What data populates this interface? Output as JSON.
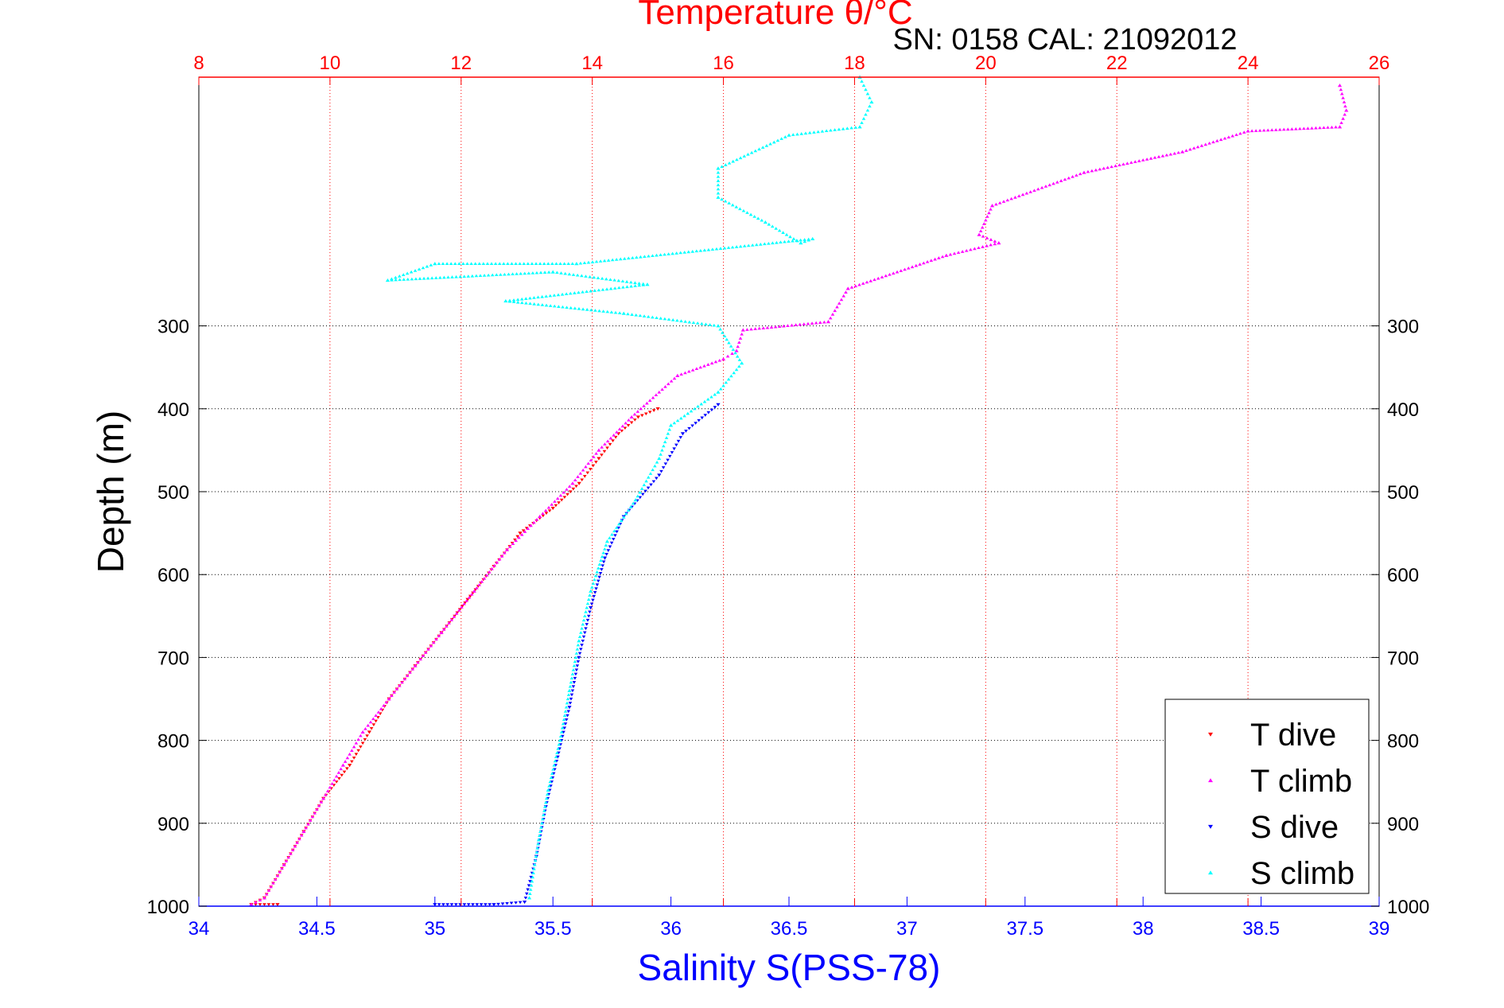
{
  "chart_data": {
    "type": "scatter",
    "title": "Temperature θ/°C",
    "subtitle": "SN: 0158  CAL: 21092012",
    "xlabel": "Salinity S(PSS-78)",
    "ylabel": "Depth (m)",
    "x_bottom": {
      "label": "Salinity S(PSS-78)",
      "min": 34,
      "max": 39,
      "ticks": [
        "34",
        "34.5",
        "35",
        "35.5",
        "36",
        "36.5",
        "37",
        "37.5",
        "38",
        "38.5",
        "39"
      ],
      "color": "#0000ff"
    },
    "x_top": {
      "label": "Temperature θ/°C",
      "min": 8,
      "max": 26,
      "ticks": [
        "8",
        "10",
        "12",
        "14",
        "16",
        "18",
        "20",
        "22",
        "24",
        "26"
      ],
      "color": "#ff0000"
    },
    "y": {
      "min": 0,
      "max": 1000,
      "reversed": true,
      "ticks": [
        "300",
        "400",
        "500",
        "600",
        "700",
        "800",
        "900",
        "1000"
      ],
      "tick_values": [
        300,
        400,
        500,
        600,
        700,
        800,
        900,
        1000
      ]
    },
    "grid": true,
    "legend_position": "bottom-right",
    "series": [
      {
        "name": "T dive",
        "axis": "temperature",
        "marker": "triangle-down",
        "color": "#ff0000",
        "points": [
          [
            15.0,
            400
          ],
          [
            14.7,
            410
          ],
          [
            14.4,
            430
          ],
          [
            14.1,
            460
          ],
          [
            13.8,
            490
          ],
          [
            13.4,
            520
          ],
          [
            12.9,
            550
          ],
          [
            12.5,
            590
          ],
          [
            12.1,
            630
          ],
          [
            11.7,
            670
          ],
          [
            11.3,
            710
          ],
          [
            10.9,
            750
          ],
          [
            10.6,
            790
          ],
          [
            10.3,
            830
          ],
          [
            9.9,
            870
          ],
          [
            9.6,
            910
          ],
          [
            9.3,
            950
          ],
          [
            9.0,
            990
          ],
          [
            8.8,
            998
          ],
          [
            9.2,
            998
          ]
        ]
      },
      {
        "name": "T climb",
        "axis": "temperature",
        "marker": "triangle-up",
        "color": "#ff00ff",
        "points": [
          [
            25.4,
            10
          ],
          [
            25.5,
            40
          ],
          [
            25.4,
            60
          ],
          [
            24.0,
            65
          ],
          [
            23.0,
            90
          ],
          [
            21.5,
            115
          ],
          [
            20.1,
            155
          ],
          [
            19.9,
            190
          ],
          [
            20.2,
            200
          ],
          [
            19.4,
            215
          ],
          [
            17.9,
            255
          ],
          [
            17.6,
            295
          ],
          [
            16.3,
            305
          ],
          [
            16.2,
            330
          ],
          [
            16.0,
            340
          ],
          [
            15.3,
            360
          ],
          [
            14.6,
            410
          ],
          [
            14.1,
            450
          ],
          [
            13.7,
            490
          ],
          [
            13.2,
            530
          ],
          [
            12.7,
            570
          ],
          [
            12.2,
            620
          ],
          [
            11.7,
            670
          ],
          [
            11.3,
            710
          ],
          [
            10.9,
            750
          ],
          [
            10.5,
            790
          ],
          [
            10.2,
            830
          ],
          [
            9.9,
            870
          ],
          [
            9.6,
            910
          ],
          [
            9.3,
            950
          ],
          [
            9.0,
            990
          ],
          [
            8.8,
            998
          ]
        ]
      },
      {
        "name": "S dive",
        "axis": "salinity",
        "marker": "triangle-down",
        "color": "#0000ff",
        "points": [
          [
            36.2,
            395
          ],
          [
            36.05,
            430
          ],
          [
            35.95,
            480
          ],
          [
            35.8,
            530
          ],
          [
            35.72,
            580
          ],
          [
            35.66,
            640
          ],
          [
            35.61,
            700
          ],
          [
            35.57,
            760
          ],
          [
            35.52,
            820
          ],
          [
            35.47,
            880
          ],
          [
            35.43,
            940
          ],
          [
            35.38,
            995
          ],
          [
            35.25,
            998
          ],
          [
            35.0,
            998
          ]
        ]
      },
      {
        "name": "S climb",
        "axis": "salinity",
        "marker": "triangle-up",
        "color": "#00ffff",
        "points": [
          [
            36.8,
            0
          ],
          [
            36.85,
            30
          ],
          [
            36.8,
            60
          ],
          [
            36.5,
            70
          ],
          [
            36.2,
            110
          ],
          [
            36.2,
            145
          ],
          [
            36.4,
            175
          ],
          [
            36.55,
            200
          ],
          [
            36.6,
            195
          ],
          [
            35.6,
            225
          ],
          [
            35.0,
            225
          ],
          [
            34.8,
            245
          ],
          [
            35.5,
            235
          ],
          [
            35.9,
            250
          ],
          [
            35.3,
            270
          ],
          [
            35.8,
            285
          ],
          [
            36.2,
            300
          ],
          [
            36.3,
            345
          ],
          [
            36.2,
            380
          ],
          [
            36.0,
            420
          ],
          [
            35.95,
            460
          ],
          [
            35.85,
            510
          ],
          [
            35.73,
            560
          ],
          [
            35.66,
            620
          ],
          [
            35.61,
            680
          ],
          [
            35.57,
            740
          ],
          [
            35.53,
            800
          ],
          [
            35.48,
            860
          ],
          [
            35.44,
            920
          ],
          [
            35.4,
            990
          ]
        ]
      }
    ]
  }
}
